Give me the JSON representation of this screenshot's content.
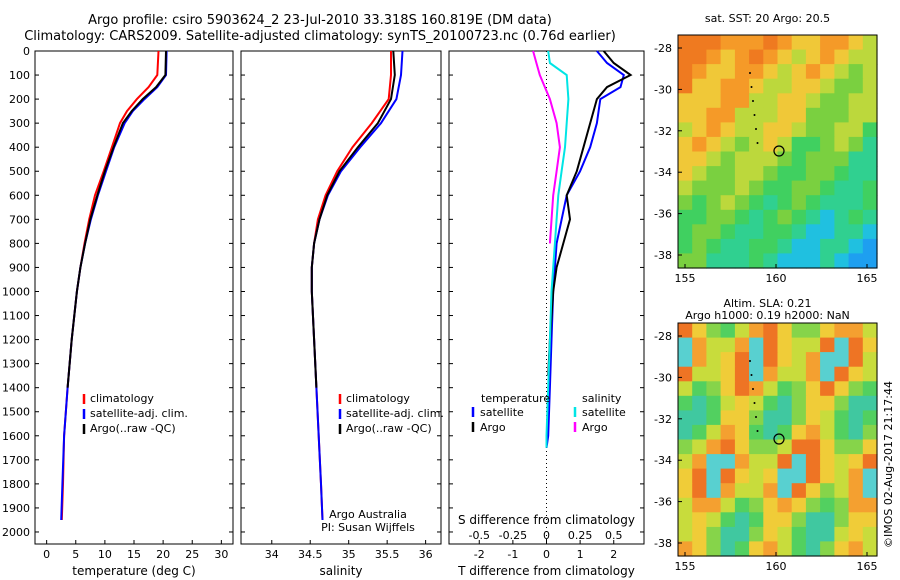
{
  "header": {
    "title_line1": "Argo profile: csiro 5903624_2 23-Jul-2010 33.318S 160.819E (DM data)",
    "title_line2": "Climatology: CARS2009. Satellite-adjusted climatology: synTS_20100723.nc (0.76d earlier)"
  },
  "watermark": "©IMOS 02-Aug-2017 21:17:44",
  "colors": {
    "climatology": "#ff0000",
    "satellite": "#0000ff",
    "argo": "#000000",
    "temp_sat": "#00e5e5",
    "sal_argo": "#ff00ff"
  },
  "depth_axis": {
    "ticks": [
      "0",
      "100",
      "200",
      "300",
      "400",
      "500",
      "600",
      "700",
      "800",
      "900",
      "1000",
      "1100",
      "1200",
      "1300",
      "1400",
      "1500",
      "1600",
      "1700",
      "1800",
      "1900",
      "2000"
    ]
  },
  "legend": {
    "climatology": "climatology",
    "satellite": "satellite-adj. clim.",
    "argo": "Argo(..raw -QC)"
  },
  "diff_legend": {
    "temperature": "temperature",
    "salinity": "salinity",
    "satellite": "satellite",
    "argo": "Argo"
  },
  "credit": {
    "line1": "Argo Australia",
    "line2": "PI: Susan Wijffels"
  },
  "chart_data": [
    {
      "type": "line",
      "xlabel": "temperature (deg C)",
      "ylabel": "",
      "xlim": [
        -2,
        32
      ],
      "ylim": [
        2000,
        0
      ],
      "xticks": [
        "0",
        "5",
        "10",
        "15",
        "20",
        "25",
        "30"
      ],
      "series": [
        {
          "name": "climatology",
          "depth": [
            0,
            100,
            150,
            200,
            250,
            300,
            400,
            500,
            600,
            700,
            800,
            900,
            1000,
            1200,
            1400,
            1600,
            1800,
            1950
          ],
          "values": [
            19.2,
            19.0,
            17.5,
            15.5,
            13.8,
            12.6,
            11.2,
            9.8,
            8.3,
            7.3,
            6.5,
            5.8,
            5.2,
            4.3,
            3.6,
            3.0,
            2.8,
            2.6
          ]
        },
        {
          "name": "satellite-adj. clim.",
          "depth": [
            0,
            100,
            150,
            200,
            250,
            300,
            400,
            500,
            600,
            700,
            800,
            900,
            1000,
            1200,
            1400,
            1600,
            1800,
            1950
          ],
          "values": [
            20.6,
            20.5,
            19.0,
            16.8,
            14.8,
            13.4,
            11.6,
            10.2,
            8.8,
            7.6,
            6.6,
            5.8,
            5.2,
            4.3,
            3.6,
            3.0,
            2.7,
            2.5
          ]
        },
        {
          "name": "Argo(..raw -QC)",
          "depth": [
            0,
            100,
            150,
            200,
            250,
            300,
            400,
            500,
            600,
            700,
            800,
            900,
            1000,
            1200,
            1400
          ],
          "values": [
            20.5,
            20.4,
            18.8,
            16.5,
            14.6,
            13.1,
            11.5,
            10.0,
            8.7,
            7.5,
            6.6,
            5.8,
            5.2,
            4.3,
            3.6
          ]
        }
      ]
    },
    {
      "type": "line",
      "xlabel": "salinity",
      "ylabel": "",
      "xlim": [
        33.6,
        36.2
      ],
      "ylim": [
        2000,
        0
      ],
      "xticks": [
        "34",
        "34.5",
        "35",
        "35.5",
        "36"
      ],
      "series": [
        {
          "name": "climatology",
          "depth": [
            0,
            100,
            200,
            300,
            400,
            500,
            600,
            700,
            800,
            900,
            1000,
            1200,
            1400,
            1600,
            1800,
            1950
          ],
          "values": [
            35.55,
            35.55,
            35.52,
            35.3,
            35.05,
            34.85,
            34.7,
            34.6,
            34.55,
            34.52,
            34.52,
            34.55,
            34.58,
            34.61,
            34.64,
            34.66
          ]
        },
        {
          "name": "satellite-adj. clim.",
          "depth": [
            0,
            100,
            200,
            300,
            400,
            500,
            600,
            700,
            800,
            900,
            1000,
            1200,
            1400,
            1600,
            1800,
            1950
          ],
          "values": [
            35.7,
            35.68,
            35.62,
            35.42,
            35.15,
            34.9,
            34.73,
            34.62,
            34.55,
            34.52,
            34.52,
            34.55,
            34.58,
            34.61,
            34.64,
            34.66
          ]
        },
        {
          "name": "Argo(..raw -QC)",
          "depth": [
            0,
            100,
            200,
            300,
            400,
            500,
            600,
            700,
            800,
            900,
            1000,
            1200,
            1400
          ],
          "values": [
            35.58,
            35.6,
            35.55,
            35.38,
            35.12,
            34.88,
            34.72,
            34.62,
            34.55,
            34.52,
            34.52,
            34.55,
            34.58
          ]
        }
      ]
    },
    {
      "type": "line",
      "xlabel": "T difference from climatology",
      "x2label": "S difference from climatology",
      "xlim": [
        -2.9,
        2.9
      ],
      "ylim": [
        2000,
        0
      ],
      "xticks": [
        "-2",
        "-1",
        "0",
        "1",
        "2"
      ],
      "x2ticks": [
        "-0.5",
        "-0.25",
        "0",
        "0.25",
        "0.5"
      ],
      "series": [
        {
          "name": "temperature satellite",
          "depth": [
            0,
            50,
            100,
            150,
            200,
            300,
            400,
            500,
            600,
            800,
            1000,
            1200,
            1400,
            1600,
            1650
          ],
          "values": [
            1.5,
            1.8,
            2.3,
            2.2,
            1.6,
            1.5,
            1.3,
            1.0,
            0.6,
            0.3,
            0.2,
            0.15,
            0.1,
            0.05,
            0.0
          ]
        },
        {
          "name": "temperature Argo",
          "depth": [
            0,
            50,
            100,
            150,
            200,
            300,
            400,
            500,
            600,
            700,
            800,
            900,
            1000,
            1200,
            1350
          ],
          "values": [
            1.7,
            2.0,
            2.5,
            1.8,
            1.5,
            1.3,
            1.1,
            0.9,
            0.6,
            0.7,
            0.5,
            0.3,
            0.2,
            0.1,
            0.05
          ]
        },
        {
          "name": "salinity satellite",
          "depth": [
            0,
            50,
            100,
            200,
            300,
            400,
            500,
            600,
            800,
            1000,
            1200,
            1400,
            1600,
            1650
          ],
          "values": [
            0.05,
            0.1,
            0.6,
            0.65,
            0.6,
            0.55,
            0.45,
            0.35,
            0.25,
            0.15,
            0.1,
            0.05,
            0.0,
            0.0
          ]
        },
        {
          "name": "salinity Argo",
          "depth": [
            0,
            50,
            100,
            200,
            300,
            400,
            500,
            600,
            800
          ],
          "values": [
            -0.4,
            -0.3,
            -0.2,
            0.1,
            0.3,
            0.4,
            0.3,
            0.2,
            0.1
          ]
        }
      ]
    }
  ],
  "maps": [
    {
      "title": "sat. SST: 20 Argo: 20.5",
      "title2": "",
      "yticks": [
        "-28",
        "-30",
        "-32",
        "-34",
        "-36",
        "-38"
      ],
      "xticks": [
        "155",
        "160",
        "165"
      ]
    },
    {
      "title": "Altim. SLA: 0.21",
      "title2": "Argo h1000: 0.19 h2000: NaN",
      "yticks": [
        "-28",
        "-30",
        "-32",
        "-34",
        "-36",
        "-38"
      ],
      "xticks": [
        "155",
        "160",
        "165"
      ]
    }
  ]
}
